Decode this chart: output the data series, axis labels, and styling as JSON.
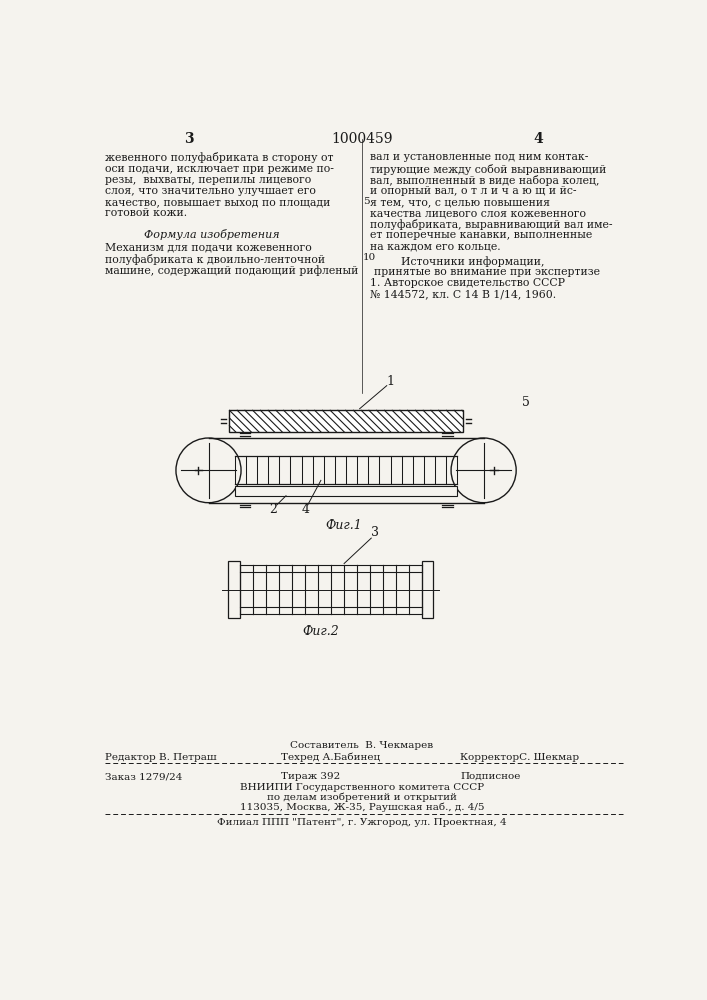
{
  "bg_color": "#f5f3ee",
  "text_color": "#1a1a1a",
  "page_number_left": "3",
  "page_number_center": "1000459",
  "page_number_right": "4",
  "col_left_text": [
    "жевенного полуфабриката в сторону от",
    "оси подачи, исключает при режиме по-",
    "резы,  выхваты, перепилы лицевого",
    "слоя, что значительно улучшает его",
    "качество, повышает выход по площади",
    "готовой кожи."
  ],
  "col_left_formula_title": "Формула изобретения",
  "col_left_formula_text": [
    "Механизм для подачи кожевенного",
    "полуфабриката к двоильно-ленточной",
    "машине, содержащий подающий рифленый"
  ],
  "col_right_text": [
    "вал и установленные под ним контак-",
    "тирующие между собой выравнивающий",
    "вал, выполненный в виде набора колец,",
    "и опорный вал, о т л и ч а ю щ и йс-",
    "я тем, что, с целью повышения",
    "качества лицевого слоя кожевенного",
    "полуфабриката, выравнивающий вал име-",
    "ет поперечные канавки, выполненные",
    "на каждом его кольце."
  ],
  "col_right_sources": "Источники информации,",
  "col_right_sources2": "принятые во внимание при экспертизе",
  "col_right_ref": "1. Авторское свидетельство СССР",
  "col_right_ref2": "№ 144572, кл. C 14 B 1/14, 1960.",
  "fig1_caption": "Фиг.1",
  "fig2_caption": "Фиг.2",
  "footer_line1": "Составитель  В. Чекмарев",
  "footer_line2_left": "Редактор В. Петраш",
  "footer_line2_mid": "Техред А.Бабинец",
  "footer_line2_right": "КорректорС. Шекмар",
  "footer_line3_left": "Заказ 1279/24",
  "footer_line3_mid": "Тираж 392",
  "footer_line3_right": "Подписное",
  "footer_line4": "ВНИИПИ Государственного комитета СССР",
  "footer_line5": "по делам изобретений и открытий",
  "footer_line6": "113035, Москва, Ж-35, Раушская наб., д. 4/5",
  "footer_line7": "Филиал ППП \"Патент\", г. Ужгород, ул. Проектная, 4"
}
